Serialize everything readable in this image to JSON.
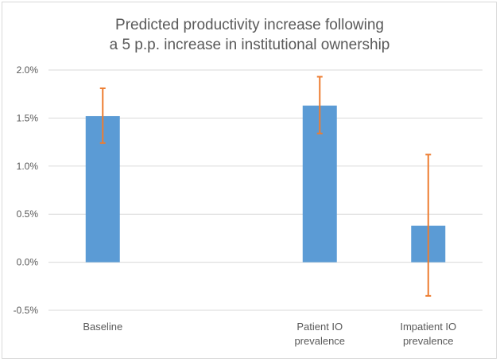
{
  "chart_data": {
    "type": "bar",
    "title": [
      "Predicted productivity increase following",
      "a 5 p.p. increase in institutional ownership"
    ],
    "xlabel": "",
    "ylabel": "",
    "categories": [
      [
        "Baseline"
      ],
      [],
      [
        "Patient IO",
        "prevalence"
      ],
      [
        "Impatient IO",
        "prevalence"
      ]
    ],
    "values": [
      0.0152,
      null,
      0.0163,
      0.0038
    ],
    "error_low": [
      0.0124,
      null,
      0.0134,
      -0.0035
    ],
    "error_high": [
      0.0181,
      null,
      0.0193,
      0.0112
    ],
    "ylim": [
      -0.005,
      0.02
    ],
    "yticks": [
      -0.005,
      0.0,
      0.005,
      0.01,
      0.015,
      0.02
    ],
    "ytick_labels": [
      "-0.5%",
      "0.0%",
      "0.5%",
      "1.0%",
      "1.5%",
      "2.0%"
    ],
    "grid": true,
    "legend": "none",
    "colors": {
      "bar": "#5b9bd5",
      "error_bar": "#ed7d31",
      "grid": "#d9d9d9",
      "text": "#595959"
    }
  }
}
